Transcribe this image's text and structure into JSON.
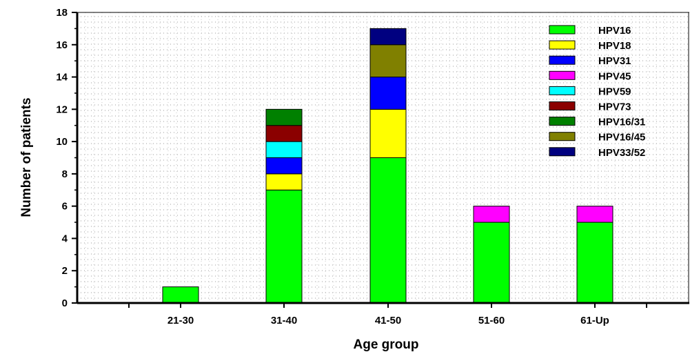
{
  "chart_data": {
    "type": "bar",
    "stacked": true,
    "title": "",
    "xlabel": "Age group",
    "ylabel": "Number of patients",
    "categories": [
      "21-30",
      "31-40",
      "41-50",
      "51-60",
      "61-Up"
    ],
    "ylim": [
      0,
      18
    ],
    "yticks": [
      0,
      2,
      4,
      6,
      8,
      10,
      12,
      14,
      16,
      18
    ],
    "grid": "dotted",
    "legend_position": "top-right",
    "series": [
      {
        "name": "HPV16",
        "color": "#00ff00",
        "values": [
          1,
          7,
          9,
          5,
          5
        ]
      },
      {
        "name": "HPV18",
        "color": "#ffff00",
        "values": [
          0,
          1,
          3,
          0,
          0
        ]
      },
      {
        "name": "HPV31",
        "color": "#0000ff",
        "values": [
          0,
          1,
          2,
          0,
          0
        ]
      },
      {
        "name": "HPV45",
        "color": "#ff00ff",
        "values": [
          0,
          0,
          0,
          1,
          1
        ]
      },
      {
        "name": "HPV59",
        "color": "#00ffff",
        "values": [
          0,
          1,
          0,
          0,
          0
        ]
      },
      {
        "name": "HPV73",
        "color": "#8b0000",
        "values": [
          0,
          1,
          0,
          0,
          0
        ]
      },
      {
        "name": "HPV16/31",
        "color": "#008000",
        "values": [
          0,
          1,
          0,
          0,
          0
        ]
      },
      {
        "name": "HPV16/45",
        "color": "#808000",
        "values": [
          0,
          0,
          2,
          0,
          0
        ]
      },
      {
        "name": "HPV33/52",
        "color": "#000080",
        "values": [
          0,
          0,
          1,
          0,
          0
        ]
      }
    ]
  }
}
